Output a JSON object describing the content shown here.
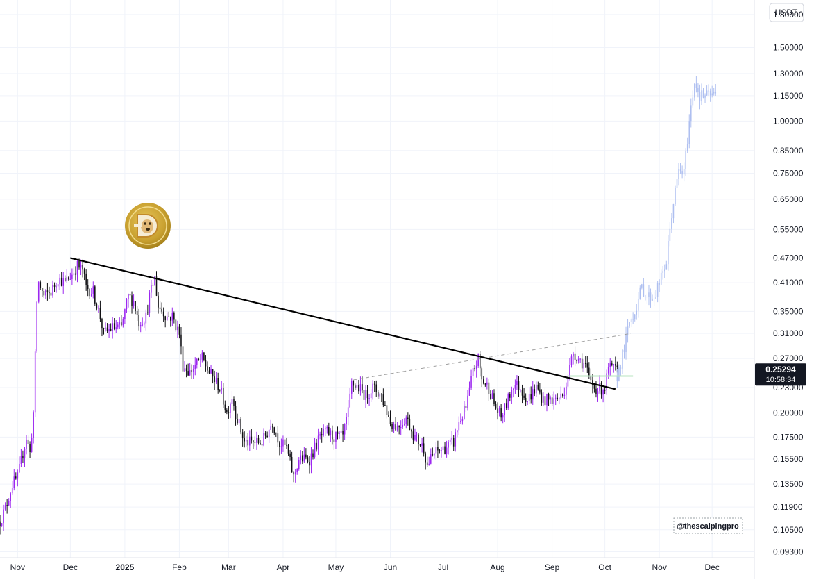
{
  "chart_data": {
    "type": "candlestick",
    "symbol_logo": "dogecoin-logo",
    "yaxis_unit": "USDT",
    "yscale": "log",
    "ylim": [
      0.09,
      1.95
    ],
    "yticks": [
      "1.80000",
      "1.50000",
      "1.30000",
      "1.15000",
      "1.00000",
      "0.85000",
      "0.75000",
      "0.65000",
      "0.55000",
      "0.47000",
      "0.41000",
      "0.35000",
      "0.31000",
      "0.27000",
      "0.23000",
      "0.20000",
      "0.17500",
      "0.15500",
      "0.13500",
      "0.11900",
      "0.10500",
      "0.09300"
    ],
    "xlabels": [
      {
        "label": "Nov",
        "date": "2024-11-01"
      },
      {
        "label": "Dec",
        "date": "2024-12-01"
      },
      {
        "label": "2025",
        "date": "2025-01-01",
        "bold": true
      },
      {
        "label": "Feb",
        "date": "2025-02-01"
      },
      {
        "label": "Mar",
        "date": "2025-03-01"
      },
      {
        "label": "Apr",
        "date": "2025-04-01"
      },
      {
        "label": "May",
        "date": "2025-05-01"
      },
      {
        "label": "Jun",
        "date": "2025-06-01"
      },
      {
        "label": "Jul",
        "date": "2025-07-01"
      },
      {
        "label": "Aug",
        "date": "2025-08-01"
      },
      {
        "label": "Sep",
        "date": "2025-09-01"
      },
      {
        "label": "Oct",
        "date": "2025-10-01"
      },
      {
        "label": "Nov",
        "date": "2025-11-01"
      },
      {
        "label": "Dec",
        "date": "2025-12-01"
      }
    ],
    "xlim": [
      "2024-10-22",
      "2025-12-25"
    ],
    "price_path": [
      [
        "2024-10-22",
        0.11
      ],
      [
        "2024-10-25",
        0.118
      ],
      [
        "2024-10-29",
        0.135
      ],
      [
        "2024-11-01",
        0.14
      ],
      [
        "2024-11-04",
        0.16
      ],
      [
        "2024-11-06",
        0.175
      ],
      [
        "2024-11-08",
        0.16
      ],
      [
        "2024-11-10",
        0.2
      ],
      [
        "2024-11-12",
        0.37
      ],
      [
        "2024-11-13",
        0.41
      ],
      [
        "2024-11-16",
        0.38
      ],
      [
        "2024-11-20",
        0.39
      ],
      [
        "2024-11-24",
        0.42
      ],
      [
        "2024-11-28",
        0.41
      ],
      [
        "2024-12-02",
        0.43
      ],
      [
        "2024-12-05",
        0.45
      ],
      [
        "2024-12-08",
        0.44
      ],
      [
        "2024-12-10",
        0.4
      ],
      [
        "2024-12-14",
        0.39
      ],
      [
        "2024-12-18",
        0.34
      ],
      [
        "2024-12-20",
        0.31
      ],
      [
        "2024-12-25",
        0.32
      ],
      [
        "2024-12-30",
        0.32
      ],
      [
        "2025-01-03",
        0.38
      ],
      [
        "2025-01-06",
        0.37
      ],
      [
        "2025-01-09",
        0.33
      ],
      [
        "2025-01-13",
        0.34
      ],
      [
        "2025-01-15",
        0.38
      ],
      [
        "2025-01-18",
        0.42
      ],
      [
        "2025-01-20",
        0.36
      ],
      [
        "2025-01-25",
        0.34
      ],
      [
        "2025-01-28",
        0.34
      ],
      [
        "2025-02-01",
        0.31
      ],
      [
        "2025-02-03",
        0.26
      ],
      [
        "2025-02-07",
        0.25
      ],
      [
        "2025-02-10",
        0.26
      ],
      [
        "2025-02-14",
        0.27
      ],
      [
        "2025-02-18",
        0.25
      ],
      [
        "2025-02-24",
        0.23
      ],
      [
        "2025-02-28",
        0.2
      ],
      [
        "2025-03-03",
        0.22
      ],
      [
        "2025-03-05",
        0.2
      ],
      [
        "2025-03-10",
        0.17
      ],
      [
        "2025-03-13",
        0.17
      ],
      [
        "2025-03-20",
        0.17
      ],
      [
        "2025-03-26",
        0.19
      ],
      [
        "2025-03-30",
        0.17
      ],
      [
        "2025-04-03",
        0.165
      ],
      [
        "2025-04-07",
        0.14
      ],
      [
        "2025-04-10",
        0.155
      ],
      [
        "2025-04-16",
        0.155
      ],
      [
        "2025-04-22",
        0.175
      ],
      [
        "2025-04-26",
        0.18
      ],
      [
        "2025-04-30",
        0.175
      ],
      [
        "2025-05-05",
        0.175
      ],
      [
        "2025-05-08",
        0.2
      ],
      [
        "2025-05-10",
        0.235
      ],
      [
        "2025-05-14",
        0.23
      ],
      [
        "2025-05-18",
        0.22
      ],
      [
        "2025-05-22",
        0.23
      ],
      [
        "2025-05-27",
        0.22
      ],
      [
        "2025-06-01",
        0.19
      ],
      [
        "2025-06-05",
        0.185
      ],
      [
        "2025-06-10",
        0.195
      ],
      [
        "2025-06-15",
        0.175
      ],
      [
        "2025-06-20",
        0.165
      ],
      [
        "2025-06-22",
        0.15
      ],
      [
        "2025-06-26",
        0.16
      ],
      [
        "2025-07-02",
        0.165
      ],
      [
        "2025-07-07",
        0.17
      ],
      [
        "2025-07-10",
        0.19
      ],
      [
        "2025-07-14",
        0.205
      ],
      [
        "2025-07-18",
        0.25
      ],
      [
        "2025-07-21",
        0.27
      ],
      [
        "2025-07-23",
        0.24
      ],
      [
        "2025-07-27",
        0.23
      ],
      [
        "2025-07-31",
        0.205
      ],
      [
        "2025-08-03",
        0.195
      ],
      [
        "2025-08-07",
        0.215
      ],
      [
        "2025-08-10",
        0.235
      ],
      [
        "2025-08-14",
        0.23
      ],
      [
        "2025-08-18",
        0.215
      ],
      [
        "2025-08-23",
        0.23
      ],
      [
        "2025-08-27",
        0.215
      ],
      [
        "2025-09-02",
        0.215
      ],
      [
        "2025-09-07",
        0.22
      ],
      [
        "2025-09-10",
        0.245
      ],
      [
        "2025-09-13",
        0.28
      ],
      [
        "2025-09-16",
        0.27
      ],
      [
        "2025-09-20",
        0.26
      ],
      [
        "2025-09-22",
        0.24
      ],
      [
        "2025-09-25",
        0.23
      ],
      [
        "2025-09-28",
        0.228
      ],
      [
        "2025-10-01",
        0.23
      ],
      [
        "2025-10-03",
        0.255
      ],
      [
        "2025-10-06",
        0.255
      ],
      [
        "2025-10-08",
        0.25
      ]
    ],
    "projection_path": [
      [
        "2025-10-08",
        0.245
      ],
      [
        "2025-10-12",
        0.285
      ],
      [
        "2025-10-15",
        0.33
      ],
      [
        "2025-10-18",
        0.35
      ],
      [
        "2025-10-22",
        0.4
      ],
      [
        "2025-10-25",
        0.38
      ],
      [
        "2025-10-29",
        0.38
      ],
      [
        "2025-11-02",
        0.42
      ],
      [
        "2025-11-05",
        0.46
      ],
      [
        "2025-11-08",
        0.6
      ],
      [
        "2025-11-12",
        0.76
      ],
      [
        "2025-11-15",
        0.75
      ],
      [
        "2025-11-18",
        1.0
      ],
      [
        "2025-11-21",
        1.25
      ],
      [
        "2025-11-24",
        1.15
      ],
      [
        "2025-11-28",
        1.15
      ],
      [
        "2025-12-03",
        1.16
      ]
    ],
    "trendlines": [
      {
        "style": "solid",
        "from": [
          "2024-12-01",
          0.47
        ],
        "to": [
          "2025-10-07",
          0.228
        ]
      },
      {
        "style": "dashed",
        "from": [
          "2025-05-11",
          0.24
        ],
        "to": [
          "2025-10-16",
          0.31
        ]
      }
    ],
    "horizontal_marker": {
      "from": "2025-09-10",
      "to": "2025-10-17",
      "value": 0.245
    },
    "current_price": "0.25294",
    "countdown": "10:58:34",
    "watermark": "@thescalpingpro",
    "colors": {
      "bull": "#9c27f0",
      "bear": "#101014",
      "projection": "#aebff0",
      "price_tag": "#131722",
      "grid": "#f0f3fa",
      "axis_text": "#131722"
    }
  }
}
